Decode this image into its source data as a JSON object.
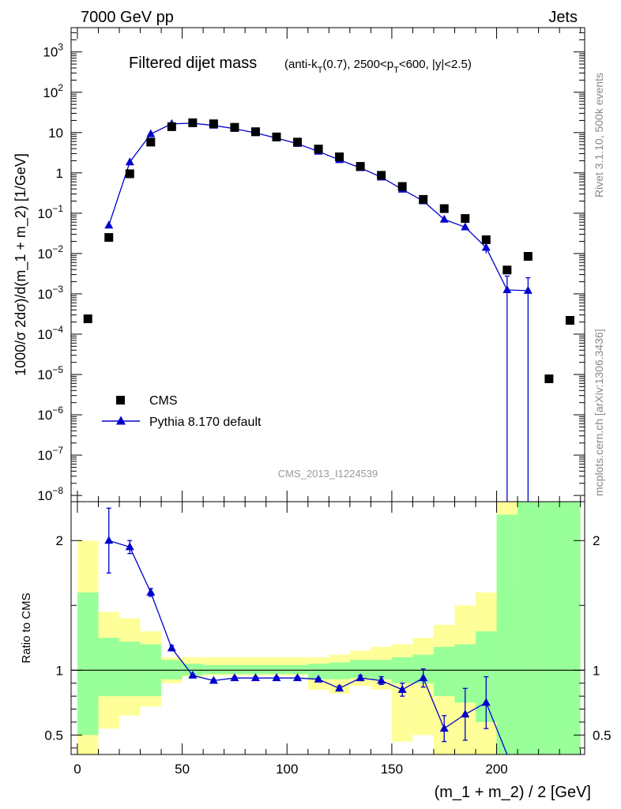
{
  "header": {
    "left": "7000 GeV pp",
    "right": "Jets"
  },
  "side_labels": {
    "rivet": "Rivet 3.1.10,  500k events",
    "mcplots": "mcplots.cern.ch [arXiv:1306.3436]"
  },
  "colors": {
    "cms": "#000000",
    "pythia": "#0000cc",
    "band_inner": "#99ff99",
    "band_outer": "#ffff99"
  },
  "chart_data": [
    {
      "type": "scatter",
      "title": "Filtered dijet mass",
      "title_extra": "(anti-k_T(0.7), 2500<p_T<600, |y|<2.5)",
      "ylabel": "1000/σ 2dσ)/d(m_1 + m_2) [1/GeV]",
      "watermark": "CMS_2013_I1224539",
      "yscale": "log",
      "ylim": [
        7e-09,
        4000
      ],
      "xlim": [
        -3,
        242
      ],
      "ytick_labels": [
        "10^-8",
        "10^-7",
        "10^-6",
        "10^-5",
        "10^-4",
        "10^-3",
        "10^-2",
        "10^-1",
        "1",
        "10",
        "10^2",
        "10^3"
      ],
      "legend_placement": "bottom-left",
      "series": [
        {
          "name": "CMS",
          "style": "markers",
          "x": [
            5,
            15,
            25,
            35,
            45,
            55,
            65,
            75,
            85,
            95,
            105,
            115,
            125,
            135,
            145,
            155,
            165,
            175,
            185,
            195,
            205,
            215,
            225,
            235
          ],
          "y": [
            0.00024,
            0.025,
            0.95,
            5.8,
            14,
            17.5,
            16.5,
            13.5,
            10.5,
            7.8,
            5.8,
            3.9,
            2.5,
            1.45,
            0.87,
            0.46,
            0.22,
            0.13,
            0.074,
            0.022,
            0.0039,
            0.0085,
            7.8e-06,
            0.00022
          ]
        },
        {
          "name": "Pythia 8.170 default",
          "style": "line-markers",
          "x": [
            15,
            25,
            35,
            45,
            55,
            65,
            75,
            85,
            95,
            105,
            115,
            125,
            135,
            145,
            155,
            165,
            175,
            185,
            195,
            205,
            215
          ],
          "y": [
            0.05,
            1.85,
            9.2,
            16.5,
            17,
            15,
            12.5,
            9.8,
            7.3,
            5.3,
            3.4,
            2.1,
            1.33,
            0.78,
            0.39,
            0.2,
            0.07,
            0.045,
            0.014,
            0.00125,
            0.0012
          ],
          "y_err_low": [
            0,
            0,
            0,
            0,
            0,
            0,
            0,
            0,
            0,
            0,
            0,
            0,
            0,
            0,
            0,
            0,
            0,
            0,
            0.004,
            0.00125,
            0.0012
          ],
          "y_err_high": [
            0,
            0,
            0,
            0,
            0,
            0,
            0,
            0,
            0,
            0,
            0,
            0,
            0,
            0,
            0,
            0,
            0,
            0,
            0.005,
            0.0015,
            0.0013
          ]
        }
      ]
    },
    {
      "type": "scatter",
      "xlabel": "(m_1 + m_2) / 2 [GeV]",
      "ylabel": "Ratio to CMS",
      "ylim": [
        0.35,
        2.3
      ],
      "xlim": [
        -3,
        242
      ],
      "xticks": [
        0,
        50,
        100,
        150,
        200
      ],
      "yticks": [
        0.5,
        1,
        2
      ],
      "reference_line": 1,
      "bands": {
        "bin_edges": [
          0,
          10,
          20,
          30,
          40,
          50,
          60,
          70,
          80,
          90,
          100,
          110,
          120,
          130,
          140,
          150,
          160,
          170,
          180,
          190,
          200,
          210,
          220,
          240
        ],
        "inner_low": [
          0.5,
          0.8,
          0.8,
          0.8,
          0.93,
          0.96,
          0.97,
          0.97,
          0.97,
          0.97,
          0.97,
          0.93,
          0.93,
          0.94,
          0.93,
          0.9,
          0.9,
          0.8,
          0.75,
          0.6,
          0.3,
          0.3,
          0.3
        ],
        "inner_high": [
          1.6,
          1.25,
          1.22,
          1.2,
          1.08,
          1.05,
          1.04,
          1.04,
          1.04,
          1.04,
          1.04,
          1.05,
          1.06,
          1.08,
          1.08,
          1.1,
          1.12,
          1.18,
          1.2,
          1.3,
          2.2,
          2.3,
          2.3
        ],
        "outer_low": [
          0.35,
          0.55,
          0.65,
          0.72,
          0.9,
          0.95,
          0.96,
          0.96,
          0.96,
          0.96,
          0.96,
          0.85,
          0.82,
          0.88,
          0.85,
          0.45,
          0.5,
          0.35,
          0.35,
          0.35,
          0.35,
          0.35,
          0.35
        ],
        "outer_high": [
          2.0,
          1.45,
          1.4,
          1.3,
          1.1,
          1.1,
          1.1,
          1.1,
          1.1,
          1.1,
          1.1,
          1.1,
          1.12,
          1.15,
          1.18,
          1.2,
          1.25,
          1.35,
          1.5,
          1.6,
          2.3,
          1.65,
          2.3
        ]
      },
      "series": [
        {
          "name": "Pythia 8.170 default",
          "x": [
            15,
            25,
            35,
            45,
            55,
            65,
            75,
            85,
            95,
            105,
            115,
            125,
            135,
            145,
            155,
            165,
            175,
            185,
            195,
            205
          ],
          "y": [
            2.0,
            1.95,
            1.6,
            1.17,
            0.96,
            0.92,
            0.94,
            0.94,
            0.94,
            0.94,
            0.93,
            0.86,
            0.94,
            0.92,
            0.85,
            0.94,
            0.55,
            0.66,
            0.75,
            0.3
          ],
          "y_err": [
            0.25,
            0.05,
            0.03,
            0.02,
            0.01,
            0.01,
            0.01,
            0.01,
            0.01,
            0.01,
            0.01,
            0.02,
            0.02,
            0.03,
            0.05,
            0.07,
            0.1,
            0.2,
            0.2,
            0.0
          ]
        }
      ]
    }
  ]
}
